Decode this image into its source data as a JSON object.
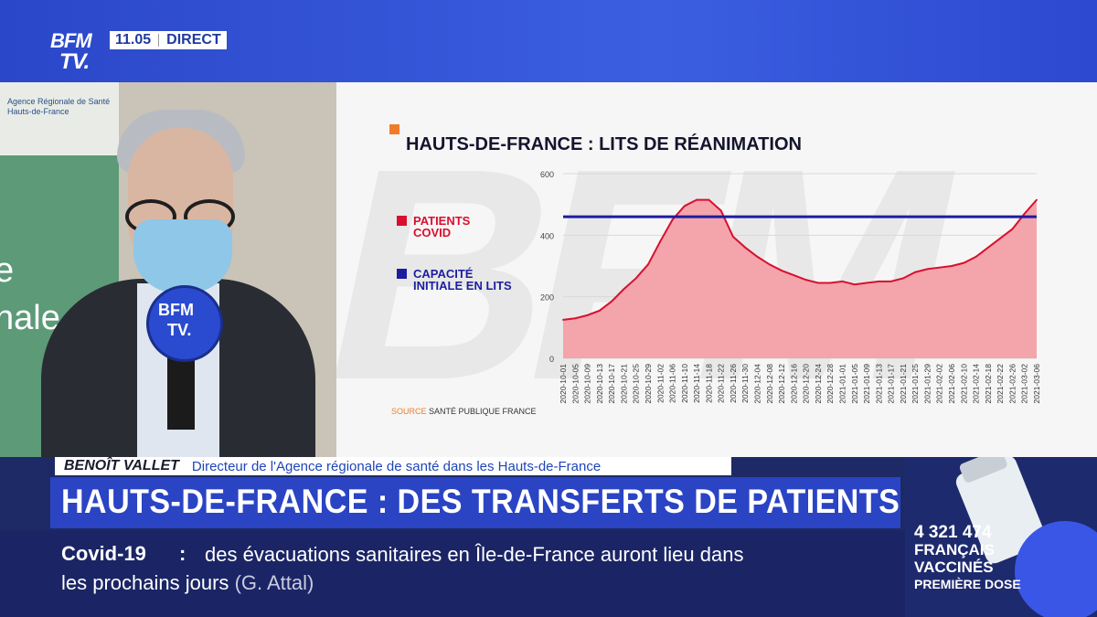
{
  "broadcast": {
    "logo_line1": "BFM",
    "logo_line2": "TV.",
    "time": "11.05",
    "live_label": "DIRECT"
  },
  "background_signage": {
    "ars_line1": "Agence Régionale de Santé",
    "ars_line2": "Hauts-de-France",
    "big_letters": "e\nnale"
  },
  "microphone": {
    "line1": "BFM",
    "line2": "TV."
  },
  "chart_data": {
    "type": "area",
    "title": "HAUTS-DE-FRANCE : LITS DE RÉANIMATION",
    "source_label": "SOURCE",
    "source_value": "SANTÉ PUBLIQUE FRANCE",
    "legend": [
      {
        "label_line1": "PATIENTS",
        "label_line2": "COVID",
        "color": "#d8102e"
      },
      {
        "label_line1": "CAPACITÉ",
        "label_line2": "INITIALE EN LITS",
        "color": "#1d1da0"
      }
    ],
    "ylim": [
      0,
      600
    ],
    "yticks": [
      0,
      200,
      400,
      600
    ],
    "x_tick_labels": [
      "2020-10-01",
      "2020-10-05",
      "2020-10-09",
      "2020-10-13",
      "2020-10-17",
      "2020-10-21",
      "2020-10-25",
      "2020-10-29",
      "2020-11-02",
      "2020-11-06",
      "2020-11-10",
      "2020-11-14",
      "2020-11-18",
      "2020-11-22",
      "2020-11-26",
      "2020-11-30",
      "2020-12-04",
      "2020-12-08",
      "2020-12-12",
      "2020-12-16",
      "2020-12-20",
      "2020-12-24",
      "2020-12-28",
      "2021-01-01",
      "2021-01-05",
      "2021-01-09",
      "2021-01-13",
      "2021-01-17",
      "2021-01-21",
      "2021-01-25",
      "2021-01-29",
      "2021-02-02",
      "2021-02-06",
      "2021-02-10",
      "2021-02-14",
      "2021-02-18",
      "2021-02-22",
      "2021-02-26",
      "2021-03-02",
      "2021-03-06"
    ],
    "series": [
      {
        "name": "PATIENTS COVID",
        "color": "#d8102e",
        "fill": "#f4a4ab",
        "values": [
          125,
          130,
          140,
          155,
          185,
          225,
          260,
          305,
          380,
          450,
          495,
          515,
          515,
          480,
          395,
          360,
          330,
          305,
          285,
          270,
          255,
          245,
          245,
          250,
          240,
          245,
          250,
          250,
          260,
          280,
          290,
          295,
          300,
          310,
          330,
          360,
          390,
          420,
          470,
          515
        ]
      },
      {
        "name": "CAPACITÉ INITIALE EN LITS",
        "color": "#1d1da0",
        "constant": 460
      }
    ]
  },
  "lower_third": {
    "name": "BENOÎT VALLET",
    "role": "Directeur de l'Agence régionale de santé dans les Hauts-de-France",
    "headline": "HAUTS-DE-FRANCE : DES TRANSFERTS DE PATIENTS"
  },
  "ticker": {
    "tag": "Covid-19",
    "colon": ":",
    "line1": "des évacuations sanitaires en Île-de-France auront lieu dans",
    "line2_main": "les prochains jours",
    "line2_attrib": "(G. Attal)"
  },
  "vaccine_widget": {
    "count": "4 321 474",
    "line_a": "FRANÇAIS",
    "line_b": "VACCINÉS",
    "line_c": "PREMIÈRE DOSE"
  }
}
